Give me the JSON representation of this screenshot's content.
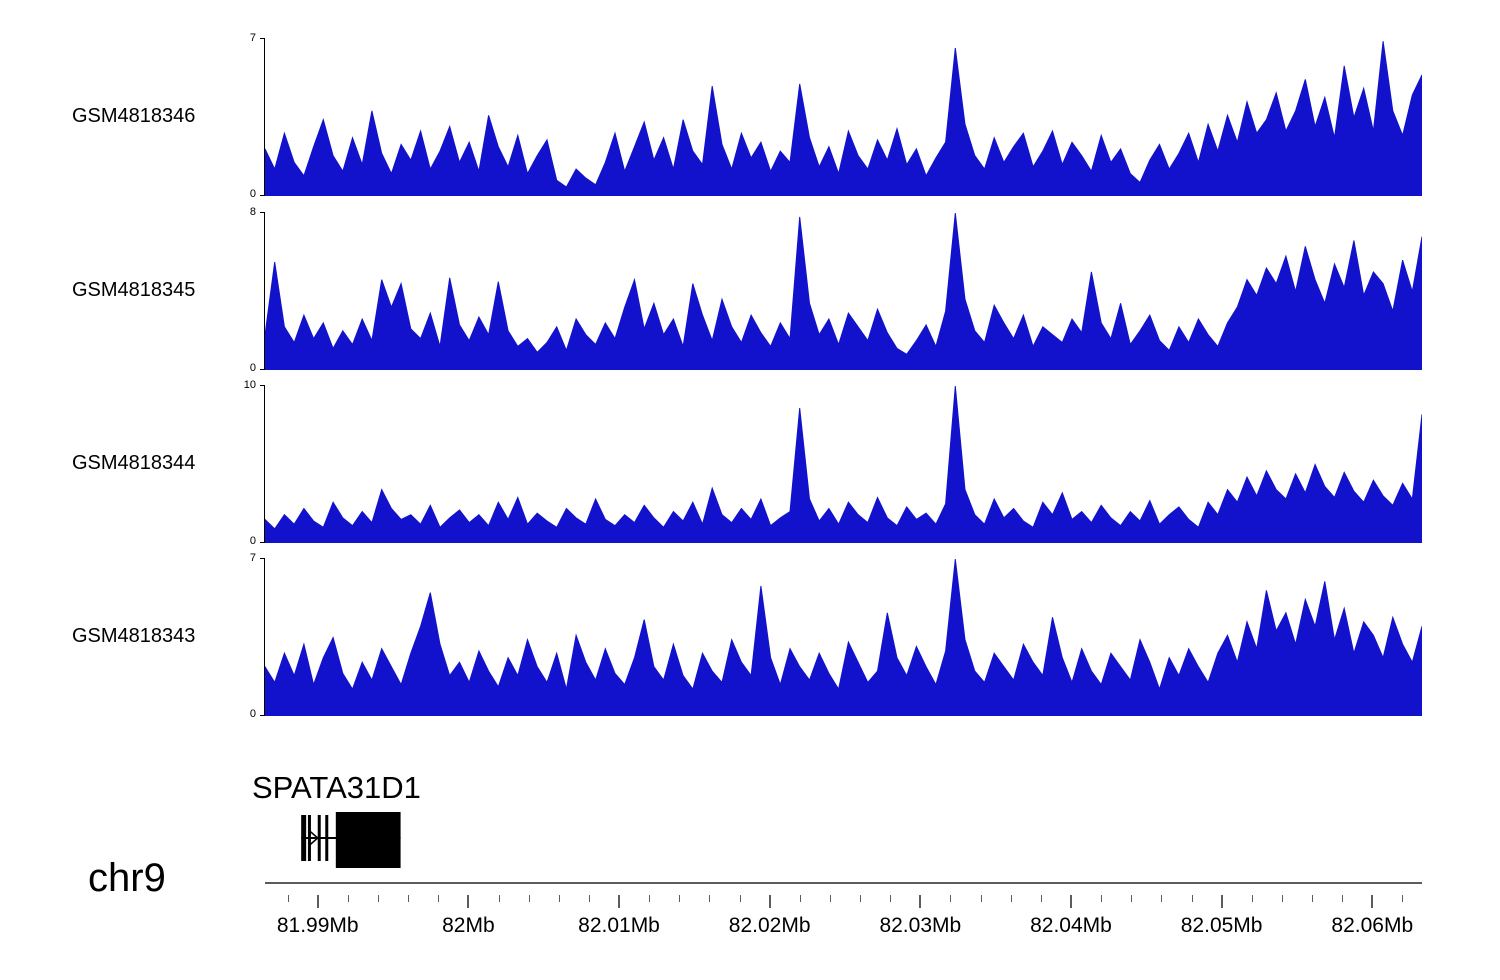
{
  "page": {
    "background": "#ffffff",
    "signal_color": "#1212CC"
  },
  "chart_data": {
    "type": "area",
    "title": "",
    "description": "Genome browser coverage tracks on chr9 with gene annotation",
    "region": {
      "chromosome": "chr9",
      "start_mb": 81.9865,
      "end_mb": 82.0633,
      "unit": "Mb"
    },
    "x_axis": {
      "major_ticks": [
        {
          "mb": 81.99,
          "label": "81.99Mb"
        },
        {
          "mb": 82.0,
          "label": "82Mb"
        },
        {
          "mb": 82.01,
          "label": "82.01Mb"
        },
        {
          "mb": 82.02,
          "label": "82.02Mb"
        },
        {
          "mb": 82.03,
          "label": "82.03Mb"
        },
        {
          "mb": 82.04,
          "label": "82.04Mb"
        },
        {
          "mb": 82.05,
          "label": "82.05Mb"
        },
        {
          "mb": 82.06,
          "label": "82.06Mb"
        }
      ],
      "minor_tick_step_mb": 0.002
    },
    "tracks": [
      {
        "name": "GSM4818346",
        "ymin": 0,
        "ymax": 7,
        "ymin_label": "0",
        "ymax_label": "7",
        "color": "#1212CC",
        "values": [
          2.1,
          1.2,
          2.8,
          1.5,
          0.9,
          2.2,
          3.4,
          1.8,
          1.1,
          2.6,
          1.4,
          3.8,
          1.9,
          1.0,
          2.3,
          1.6,
          2.9,
          1.2,
          2.0,
          3.1,
          1.5,
          2.4,
          1.1,
          3.6,
          2.2,
          1.3,
          2.7,
          1.0,
          1.8,
          2.5,
          0.7,
          0.4,
          1.2,
          0.8,
          0.5,
          1.5,
          2.8,
          1.1,
          2.2,
          3.3,
          1.6,
          2.6,
          1.2,
          3.4,
          2.0,
          1.4,
          4.9,
          2.3,
          1.2,
          2.8,
          1.7,
          2.4,
          1.1,
          2.0,
          1.5,
          5.0,
          2.6,
          1.3,
          2.2,
          1.0,
          2.9,
          1.8,
          1.2,
          2.5,
          1.6,
          3.0,
          1.4,
          2.1,
          0.9,
          1.7,
          2.4,
          6.6,
          3.2,
          1.8,
          1.2,
          2.6,
          1.5,
          2.2,
          2.8,
          1.3,
          2.0,
          2.9,
          1.4,
          2.4,
          1.8,
          1.1,
          2.7,
          1.5,
          2.1,
          1.0,
          0.6,
          1.6,
          2.3,
          1.2,
          1.9,
          2.8,
          1.5,
          3.2,
          2.0,
          3.6,
          2.4,
          4.2,
          2.8,
          3.4,
          4.6,
          2.9,
          3.8,
          5.2,
          3.1,
          4.4,
          2.6,
          5.8,
          3.5,
          4.8,
          2.9,
          6.9,
          3.8,
          2.7,
          4.5,
          5.4
        ]
      },
      {
        "name": "GSM4818345",
        "ymin": 0,
        "ymax": 8,
        "ymin_label": "0",
        "ymax_label": "8",
        "color": "#1212CC",
        "values": [
          1.8,
          5.5,
          2.2,
          1.4,
          2.8,
          1.6,
          2.4,
          1.1,
          2.0,
          1.3,
          2.6,
          1.5,
          4.6,
          3.2,
          4.4,
          2.1,
          1.6,
          2.9,
          1.2,
          4.7,
          2.3,
          1.5,
          2.7,
          1.8,
          4.5,
          2.0,
          1.2,
          1.6,
          0.9,
          1.4,
          2.2,
          1.0,
          2.6,
          1.8,
          1.3,
          2.4,
          1.6,
          3.2,
          4.6,
          2.1,
          3.4,
          1.8,
          2.6,
          1.2,
          4.4,
          2.8,
          1.5,
          3.6,
          2.2,
          1.4,
          2.8,
          1.9,
          1.2,
          2.4,
          1.6,
          7.8,
          3.4,
          1.8,
          2.6,
          1.3,
          2.9,
          2.2,
          1.5,
          3.1,
          1.9,
          1.1,
          0.8,
          1.5,
          2.3,
          1.2,
          3.0,
          8.0,
          3.6,
          2.0,
          1.4,
          3.3,
          2.4,
          1.6,
          2.8,
          1.2,
          2.2,
          1.8,
          1.4,
          2.6,
          1.9,
          5.0,
          2.4,
          1.6,
          3.4,
          1.3,
          2.0,
          2.8,
          1.5,
          1.0,
          2.2,
          1.4,
          2.6,
          1.8,
          1.2,
          2.4,
          3.2,
          4.6,
          3.8,
          5.2,
          4.4,
          5.8,
          4.0,
          6.3,
          4.6,
          3.4,
          5.4,
          4.2,
          6.6,
          3.8,
          5.0,
          4.4,
          3.0,
          5.6,
          4.0,
          6.8
        ]
      },
      {
        "name": "GSM4818344",
        "ymin": 0,
        "ymax": 10,
        "ymin_label": "0",
        "ymax_label": "10",
        "color": "#1212CC",
        "values": [
          1.5,
          0.9,
          1.8,
          1.2,
          2.2,
          1.4,
          1.0,
          2.6,
          1.6,
          1.1,
          2.0,
          1.3,
          3.4,
          2.2,
          1.5,
          1.8,
          1.2,
          2.4,
          1.0,
          1.6,
          2.1,
          1.3,
          1.8,
          1.1,
          2.6,
          1.5,
          2.9,
          1.2,
          1.9,
          1.4,
          1.0,
          2.2,
          1.6,
          1.2,
          2.8,
          1.5,
          1.1,
          1.8,
          1.3,
          2.4,
          1.6,
          1.0,
          2.0,
          1.4,
          2.6,
          1.2,
          3.5,
          1.8,
          1.3,
          2.2,
          1.5,
          2.8,
          1.1,
          1.6,
          2.0,
          8.6,
          2.8,
          1.4,
          2.2,
          1.2,
          2.6,
          1.8,
          1.3,
          2.9,
          1.6,
          1.1,
          2.3,
          1.5,
          1.9,
          1.2,
          2.5,
          10.0,
          3.4,
          1.8,
          1.2,
          2.8,
          1.6,
          2.2,
          1.4,
          1.0,
          2.6,
          1.8,
          3.2,
          1.5,
          2.0,
          1.3,
          2.4,
          1.6,
          1.1,
          2.0,
          1.4,
          2.7,
          1.2,
          1.8,
          2.3,
          1.5,
          1.0,
          2.6,
          1.8,
          3.4,
          2.6,
          4.2,
          3.0,
          4.6,
          3.4,
          2.8,
          4.4,
          3.2,
          5.0,
          3.6,
          2.9,
          4.5,
          3.3,
          2.6,
          4.0,
          3.0,
          2.4,
          3.8,
          2.8,
          8.2
        ]
      },
      {
        "name": "GSM4818343",
        "ymin": 0,
        "ymax": 7,
        "ymin_label": "0",
        "ymax_label": "7",
        "color": "#1212CC",
        "values": [
          2.2,
          1.5,
          2.8,
          1.8,
          3.2,
          1.4,
          2.6,
          3.5,
          1.9,
          1.2,
          2.4,
          1.6,
          3.0,
          2.2,
          1.4,
          2.8,
          4.0,
          5.5,
          3.2,
          1.8,
          2.4,
          1.5,
          2.9,
          2.0,
          1.3,
          2.6,
          1.8,
          3.4,
          2.2,
          1.5,
          2.8,
          1.2,
          3.6,
          2.4,
          1.6,
          3.0,
          1.9,
          1.4,
          2.6,
          4.3,
          2.2,
          1.6,
          3.2,
          1.8,
          1.2,
          2.8,
          2.0,
          1.5,
          3.4,
          2.4,
          1.8,
          5.8,
          2.6,
          1.4,
          3.0,
          2.2,
          1.6,
          2.8,
          1.9,
          1.2,
          3.3,
          2.4,
          1.5,
          2.0,
          4.6,
          2.6,
          1.8,
          3.1,
          2.2,
          1.4,
          2.9,
          7.0,
          3.4,
          2.0,
          1.5,
          2.8,
          2.2,
          1.6,
          3.2,
          2.4,
          1.8,
          4.4,
          2.6,
          1.5,
          3.0,
          2.0,
          1.4,
          2.8,
          2.2,
          1.6,
          3.4,
          2.4,
          1.2,
          2.6,
          1.8,
          3.0,
          2.2,
          1.5,
          2.8,
          3.6,
          2.4,
          4.2,
          3.0,
          5.6,
          3.8,
          4.6,
          3.2,
          5.2,
          4.0,
          6.0,
          3.4,
          4.8,
          2.8,
          4.2,
          3.6,
          2.6,
          4.4,
          3.2,
          2.4,
          4.0
        ]
      }
    ],
    "gene_track": {
      "gene_label": "SPATA31D1",
      "chromosome_label": "chr9",
      "line_start_mb": 81.9889,
      "line_end_mb": 81.9955,
      "thin_exons_mb": [
        81.989,
        81.98945,
        81.9901,
        81.9906
      ],
      "strand_arrow_mb": 81.9898,
      "box_start_mb": 81.9912,
      "box_end_mb": 81.9955,
      "color": "#000000"
    }
  }
}
